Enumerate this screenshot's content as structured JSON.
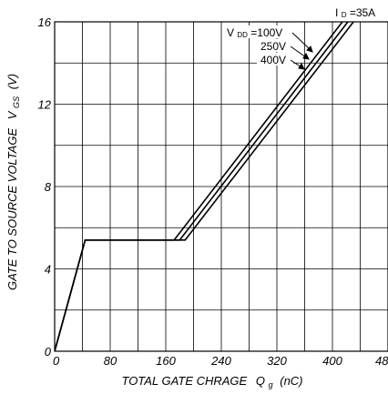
{
  "chart_data": {
    "type": "line",
    "xlabel": "TOTAL GATE CHRAGE",
    "xlabel_symbol": "Q",
    "xlabel_symbol_sub": "g",
    "xlabel_unit": "(nC)",
    "ylabel": "GATE TO SOURCE VOLTAGE",
    "ylabel_symbol": "V",
    "ylabel_symbol_sub": "GS",
    "ylabel_unit": "(V)",
    "xlim": [
      0,
      480
    ],
    "ylim": [
      0,
      16
    ],
    "x_ticks": [
      "0",
      "80",
      "160",
      "240",
      "320",
      "400",
      "480"
    ],
    "y_ticks": [
      "0",
      "4",
      "8",
      "12",
      "16"
    ],
    "grid": true,
    "condition": {
      "prefix": "I",
      "sub": "D",
      "text": "=35A"
    },
    "series_label_prefix": "V",
    "series_label_sub": "DD",
    "series": [
      {
        "name": "=100V",
        "points": [
          [
            0,
            0
          ],
          [
            44,
            5.4
          ],
          [
            172,
            5.4
          ],
          [
            428,
            16.6
          ]
        ]
      },
      {
        "name": "250V",
        "points": [
          [
            0,
            0
          ],
          [
            44,
            5.4
          ],
          [
            180,
            5.4
          ],
          [
            436,
            16.6
          ]
        ]
      },
      {
        "name": "400V",
        "points": [
          [
            0,
            0
          ],
          [
            44,
            5.4
          ],
          [
            188,
            5.4
          ],
          [
            444,
            16.6
          ]
        ]
      }
    ]
  }
}
